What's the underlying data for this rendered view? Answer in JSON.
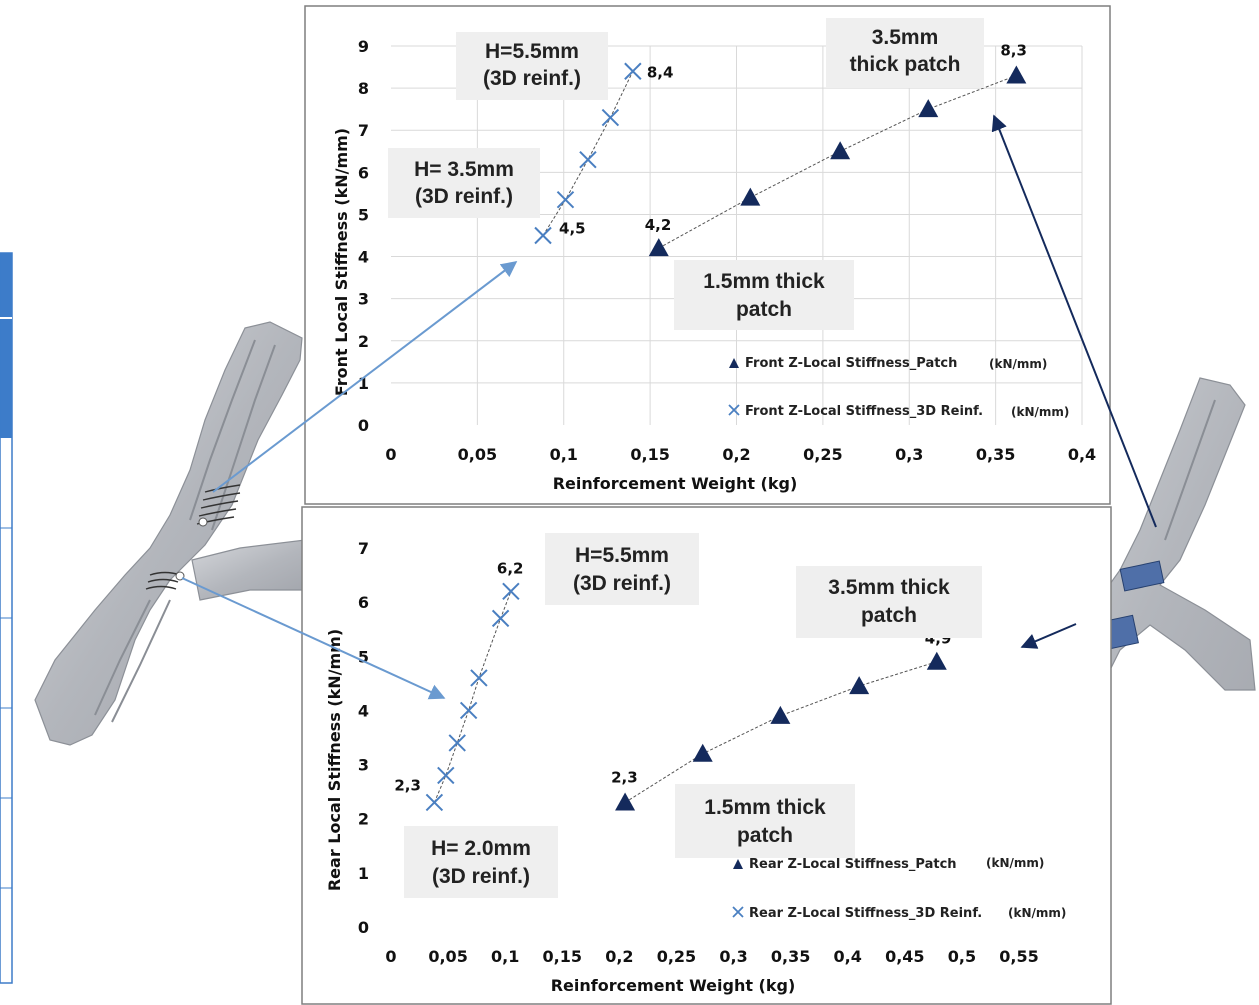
{
  "colors": {
    "patch": "#142a5c",
    "reinf": "#4a7fc1",
    "annotation_box": "#efefef",
    "grid": "#d9d9d9",
    "part_body": "#b9bcc2",
    "arrow_light": "#6a9ad0",
    "arrow_dark": "#142a5c"
  },
  "chart_data": [
    {
      "id": "front",
      "type": "scatter",
      "xlabel": "Reinforcement Weight (kg)",
      "ylabel": "Front Local Stiffness (kN/mm)",
      "xlim": [
        0,
        0.4
      ],
      "ylim": [
        0,
        9
      ],
      "xticks": [
        "0",
        "0,05",
        "0,1",
        "0,15",
        "0,2",
        "0,25",
        "0,3",
        "0,35",
        "0,4"
      ],
      "yticks": [
        "0",
        "1",
        "2",
        "3",
        "4",
        "5",
        "6",
        "7",
        "8",
        "9"
      ],
      "grid": true,
      "legend_position": "bottom-right",
      "series": [
        {
          "name": "Front Z-Local Stiffness_Patch",
          "unit": "(kN/mm)",
          "marker": "triangle",
          "x": [
            0.155,
            0.208,
            0.26,
            0.311,
            0.362
          ],
          "y": [
            4.2,
            5.4,
            6.5,
            7.5,
            8.3
          ]
        },
        {
          "name": "Front Z-Local Stiffness_3D Reinf.",
          "unit": "(kN/mm)",
          "marker": "x",
          "x": [
            0.088,
            0.101,
            0.114,
            0.127,
            0.14
          ],
          "y": [
            4.5,
            5.35,
            6.3,
            7.3,
            8.4
          ]
        }
      ],
      "point_labels": [
        {
          "text": "8,4",
          "x": 0.14,
          "y": 8.4
        },
        {
          "text": "4,5",
          "x": 0.088,
          "y": 4.5
        },
        {
          "text": "4,2",
          "x": 0.155,
          "y": 4.2
        },
        {
          "text": "8,3",
          "x": 0.362,
          "y": 8.3
        }
      ],
      "annotations": [
        {
          "lines": [
            "H=5.5mm",
            "(3D reinf.)"
          ]
        },
        {
          "lines": [
            "H= 3.5mm",
            "(3D reinf.)"
          ]
        },
        {
          "lines": [
            "3.5mm",
            "thick patch"
          ]
        },
        {
          "lines": [
            "1.5mm thick",
            "patch"
          ]
        }
      ]
    },
    {
      "id": "rear",
      "type": "scatter",
      "xlabel": "Reinforcement Weight (kg)",
      "ylabel": "Rear Local Stiffness (kN/mm)",
      "xlim": [
        0,
        0.55
      ],
      "ylim": [
        0,
        7
      ],
      "xticks": [
        "0",
        "0,05",
        "0,1",
        "0,15",
        "0,2",
        "0,25",
        "0,3",
        "0,35",
        "0,4",
        "0,45",
        "0,5",
        "0,55"
      ],
      "yticks": [
        "0",
        "1",
        "2",
        "3",
        "4",
        "5",
        "6",
        "7"
      ],
      "grid": false,
      "legend_position": "bottom-right",
      "series": [
        {
          "name": "Rear Z-Local Stiffness_Patch",
          "unit": "(kN/mm)",
          "marker": "triangle",
          "x": [
            0.205,
            0.273,
            0.341,
            0.41,
            0.478
          ],
          "y": [
            2.3,
            3.2,
            3.9,
            4.45,
            4.9
          ]
        },
        {
          "name": "Rear Z-Local Stiffness_3D Reinf.",
          "unit": "(kN/mm)",
          "marker": "x",
          "x": [
            0.038,
            0.048,
            0.058,
            0.068,
            0.077,
            0.096,
            0.105
          ],
          "y": [
            2.3,
            2.8,
            3.4,
            4.0,
            4.6,
            5.7,
            6.2
          ]
        }
      ],
      "point_labels": [
        {
          "text": "6,2",
          "x": 0.105,
          "y": 6.2
        },
        {
          "text": "2,3",
          "x": 0.038,
          "y": 2.3
        },
        {
          "text": "2,3",
          "x": 0.205,
          "y": 2.3
        },
        {
          "text": "4,9",
          "x": 0.478,
          "y": 4.9
        }
      ],
      "annotations": [
        {
          "lines": [
            "H=5.5mm",
            "(3D reinf.)"
          ]
        },
        {
          "lines": [
            "H= 2.0mm",
            "(3D reinf.)"
          ]
        },
        {
          "lines": [
            "3.5mm thick",
            "patch"
          ]
        },
        {
          "lines": [
            "1.5mm thick",
            "patch"
          ]
        }
      ]
    }
  ]
}
